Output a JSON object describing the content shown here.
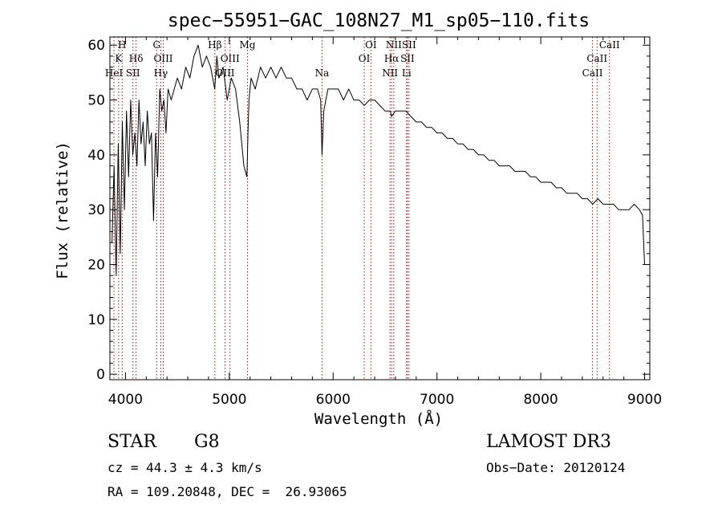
{
  "chart_data": {
    "type": "line",
    "title": "spec−55951−GAC_108N27_M1_sp05−110.fits",
    "xlabel": "Wavelength (Å)",
    "ylabel": "Flux (relative)",
    "xlim": [
      3850,
      9050
    ],
    "ylim": [
      -1,
      61.5
    ],
    "x_ticks": [
      4000,
      5000,
      6000,
      7000,
      8000,
      9000
    ],
    "y_ticks": [
      0,
      10,
      20,
      30,
      40,
      50,
      60
    ],
    "grid": false,
    "series": [
      {
        "name": "flux",
        "x": [
          3870,
          3890,
          3910,
          3930,
          3950,
          3970,
          3990,
          4010,
          4030,
          4050,
          4070,
          4090,
          4110,
          4130,
          4150,
          4170,
          4190,
          4210,
          4230,
          4250,
          4270,
          4290,
          4310,
          4330,
          4350,
          4370,
          4390,
          4410,
          4440,
          4470,
          4500,
          4540,
          4580,
          4620,
          4660,
          4700,
          4740,
          4780,
          4820,
          4860,
          4880,
          4900,
          4940,
          4980,
          5020,
          5060,
          5100,
          5140,
          5170,
          5180,
          5190,
          5210,
          5250,
          5300,
          5350,
          5400,
          5450,
          5500,
          5550,
          5600,
          5650,
          5700,
          5750,
          5800,
          5850,
          5880,
          5893,
          5910,
          5950,
          6000,
          6050,
          6100,
          6150,
          6200,
          6250,
          6300,
          6350,
          6400,
          6450,
          6500,
          6550,
          6563,
          6600,
          6650,
          6700,
          6750,
          6800,
          6850,
          6900,
          6950,
          7000,
          7050,
          7100,
          7150,
          7200,
          7250,
          7300,
          7350,
          7400,
          7450,
          7500,
          7550,
          7600,
          7650,
          7700,
          7750,
          7800,
          7850,
          7900,
          7950,
          8000,
          8050,
          8100,
          8150,
          8200,
          8250,
          8300,
          8350,
          8400,
          8450,
          8500,
          8550,
          8600,
          8650,
          8700,
          8750,
          8800,
          8850,
          8900,
          8950,
          8980,
          9000
        ],
        "y": [
          24,
          38,
          18,
          42,
          22,
          46,
          30,
          48,
          36,
          50,
          40,
          44,
          38,
          50,
          42,
          46,
          38,
          48,
          42,
          44,
          28,
          44,
          36,
          52,
          48,
          50,
          44,
          52,
          50,
          52,
          54,
          52,
          56,
          54,
          58,
          60,
          56,
          58,
          56,
          52,
          58,
          54,
          56,
          50,
          54,
          52,
          46,
          38,
          36,
          44,
          50,
          54,
          52,
          56,
          54,
          56,
          54,
          56,
          54,
          54,
          52,
          52,
          50,
          52,
          52,
          50,
          40,
          48,
          52,
          52,
          52,
          50,
          52,
          50,
          50,
          49,
          50,
          50,
          49,
          48,
          48,
          47,
          48,
          48,
          48,
          47,
          46,
          46,
          45,
          45,
          44,
          44,
          43,
          43,
          42,
          42,
          41,
          41,
          40,
          40,
          39,
          39,
          38,
          38,
          38,
          37,
          37,
          37,
          36,
          36,
          35,
          35,
          35,
          34,
          34,
          33,
          33,
          33,
          32,
          32,
          31,
          32,
          31,
          31,
          31,
          30,
          30,
          30,
          31,
          30,
          29,
          20
        ]
      }
    ],
    "line_labels": [
      {
        "wavelength": 3889,
        "row": 2,
        "label": "HeI"
      },
      {
        "wavelength": 3934,
        "row": 1,
        "label": "K"
      },
      {
        "wavelength": 3968,
        "row": 0,
        "label": "H"
      },
      {
        "wavelength": 4072,
        "row": 2,
        "label": "SII"
      },
      {
        "wavelength": 4102,
        "row": 1,
        "label": "Hδ"
      },
      {
        "wavelength": 4300,
        "row": 0,
        "label": "G"
      },
      {
        "wavelength": 4340,
        "row": 2,
        "label": "Hγ"
      },
      {
        "wavelength": 4364,
        "row": 1,
        "label": "OIII"
      },
      {
        "wavelength": 4861,
        "row": 0,
        "label": "Hβ"
      },
      {
        "wavelength": 4959,
        "row": 2,
        "label": "OIII"
      },
      {
        "wavelength": 5007,
        "row": 1,
        "label": "OIII"
      },
      {
        "wavelength": 5175,
        "row": 0,
        "label": "Mg"
      },
      {
        "wavelength": 5893,
        "row": 2,
        "label": "Na"
      },
      {
        "wavelength": 6300,
        "row": 1,
        "label": "OI"
      },
      {
        "wavelength": 6364,
        "row": 0,
        "label": "OI"
      },
      {
        "wavelength": 6548,
        "row": 2,
        "label": "NII"
      },
      {
        "wavelength": 6563,
        "row": 1,
        "label": "Hα"
      },
      {
        "wavelength": 6584,
        "row": 0,
        "label": "NII"
      },
      {
        "wavelength": 6707,
        "row": 2,
        "label": "Li"
      },
      {
        "wavelength": 6716,
        "row": 1,
        "label": "SII"
      },
      {
        "wavelength": 6731,
        "row": 0,
        "label": "SII"
      },
      {
        "wavelength": 8498,
        "row": 2,
        "label": "CaII"
      },
      {
        "wavelength": 8542,
        "row": 1,
        "label": "CaII"
      },
      {
        "wavelength": 8662,
        "row": 0,
        "label": "CaII"
      }
    ]
  },
  "info": {
    "object_class": "STAR",
    "subclass": "G8",
    "survey": "LAMOST DR3",
    "cz_line": "cz = 44.3 ± 4.3 km/s",
    "obs_date_line": "Obs−Date: 20120124",
    "coords_line": "RA = 109.20848, DEC =  26.93065"
  },
  "colors": {
    "spectrum": "#000000",
    "line_marker": "#a01414",
    "axes": "#000000"
  }
}
